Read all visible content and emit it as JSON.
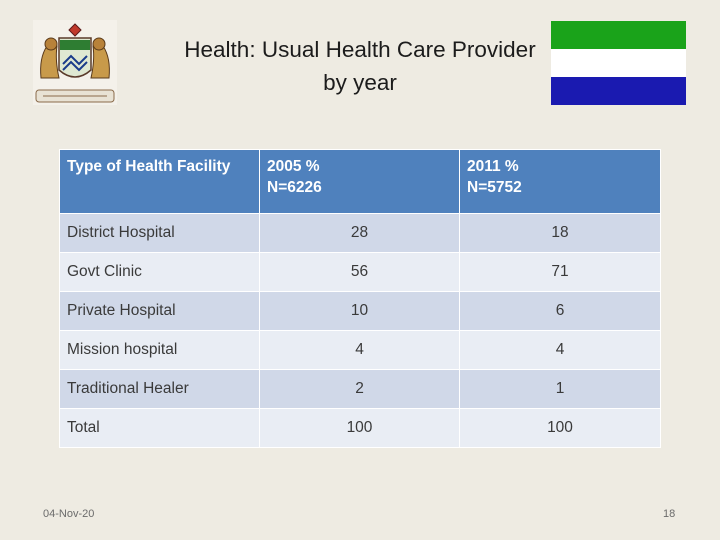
{
  "slide": {
    "title_line1": "Health: Usual Health Care Provider",
    "title_line2": "by year",
    "footer_date": "04-Nov-20",
    "page_number": "18"
  },
  "flag": {
    "colors": [
      "#1aa31a",
      "#ffffff",
      "#1a1ab0"
    ]
  },
  "table": {
    "headers": [
      {
        "label": "Type of Health Facility",
        "sub": ""
      },
      {
        "label": "2005 %",
        "sub": "N=6226"
      },
      {
        "label": "2011 %",
        "sub": "N=5752"
      }
    ],
    "rows": [
      [
        "District Hospital",
        "28",
        "18"
      ],
      [
        "Govt Clinic",
        "56",
        "71"
      ],
      [
        "Private Hospital",
        "10",
        "6"
      ],
      [
        "Mission hospital",
        "4",
        "4"
      ],
      [
        "Traditional Healer",
        "2",
        "1"
      ],
      [
        "Total",
        "100",
        "100"
      ]
    ]
  }
}
